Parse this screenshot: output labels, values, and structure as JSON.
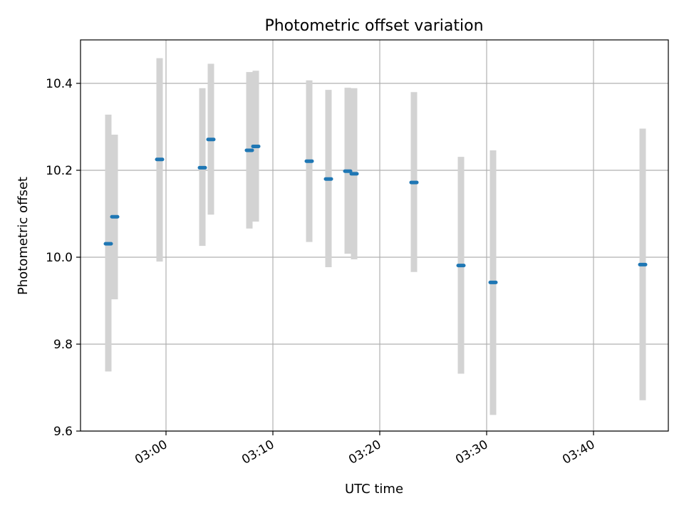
{
  "chart_data": {
    "type": "scatter",
    "title": "Photometric offset variation",
    "xlabel": "UTC time",
    "ylabel": "Photometric offset",
    "x_unit": "time (HH:MM)",
    "xlim": [
      "02:52:00",
      "03:47:00"
    ],
    "ylim": [
      9.6,
      10.5
    ],
    "x_ticks": [
      "03:00",
      "03:10",
      "03:20",
      "03:30",
      "03:40"
    ],
    "y_ticks": [
      9.6,
      9.8,
      10.0,
      10.2,
      10.4
    ],
    "grid": true,
    "colors": {
      "point": "#1f77b4",
      "errorbar": "#d3d3d3",
      "grid": "#b0b0b0"
    },
    "points": [
      {
        "x": "02:54:36",
        "y": 10.031,
        "y_low": 9.737,
        "y_high": 10.328
      },
      {
        "x": "02:55:12",
        "y": 10.093,
        "y_low": 9.903,
        "y_high": 10.282
      },
      {
        "x": "02:59:24",
        "y": 10.225,
        "y_low": 9.99,
        "y_high": 10.458
      },
      {
        "x": "03:03:24",
        "y": 10.206,
        "y_low": 10.026,
        "y_high": 10.389
      },
      {
        "x": "03:04:12",
        "y": 10.271,
        "y_low": 10.098,
        "y_high": 10.445
      },
      {
        "x": "03:07:48",
        "y": 10.246,
        "y_low": 10.066,
        "y_high": 10.426
      },
      {
        "x": "03:08:24",
        "y": 10.255,
        "y_low": 10.082,
        "y_high": 10.429
      },
      {
        "x": "03:13:24",
        "y": 10.221,
        "y_low": 10.035,
        "y_high": 10.407
      },
      {
        "x": "03:15:12",
        "y": 10.18,
        "y_low": 9.977,
        "y_high": 10.385
      },
      {
        "x": "03:17:00",
        "y": 10.198,
        "y_low": 10.008,
        "y_high": 10.39
      },
      {
        "x": "03:17:36",
        "y": 10.192,
        "y_low": 9.995,
        "y_high": 10.389
      },
      {
        "x": "03:23:12",
        "y": 10.172,
        "y_low": 9.966,
        "y_high": 10.38
      },
      {
        "x": "03:27:36",
        "y": 9.981,
        "y_low": 9.732,
        "y_high": 10.231
      },
      {
        "x": "03:30:36",
        "y": 9.942,
        "y_low": 9.637,
        "y_high": 10.246
      },
      {
        "x": "03:44:36",
        "y": 9.983,
        "y_low": 9.671,
        "y_high": 10.296
      }
    ]
  }
}
